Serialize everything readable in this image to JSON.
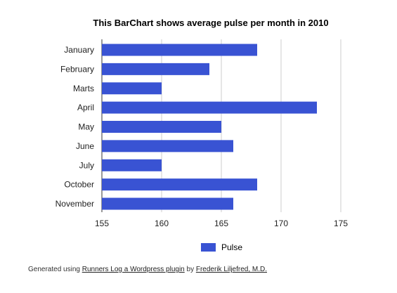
{
  "chart_data": {
    "type": "bar",
    "orientation": "horizontal",
    "title": "This BarChart shows average pulse per month in 2010",
    "categories": [
      "January",
      "February",
      "Marts",
      "April",
      "May",
      "June",
      "July",
      "October",
      "November"
    ],
    "series": [
      {
        "name": "Pulse",
        "color": "#3953d3",
        "values": [
          168,
          164,
          160,
          173,
          165,
          166,
          160,
          168,
          166
        ]
      }
    ],
    "xlim": [
      155,
      175
    ],
    "xticks": [
      "155",
      "160",
      "165",
      "170",
      "175"
    ],
    "grid": true,
    "legend": "bottom"
  },
  "footer": {
    "prefix": "Generated using ",
    "plugin_link": "Runners Log a Wordpress plugin",
    "middle": " by ",
    "author_link": "Frederik Liljefred, M.D."
  }
}
